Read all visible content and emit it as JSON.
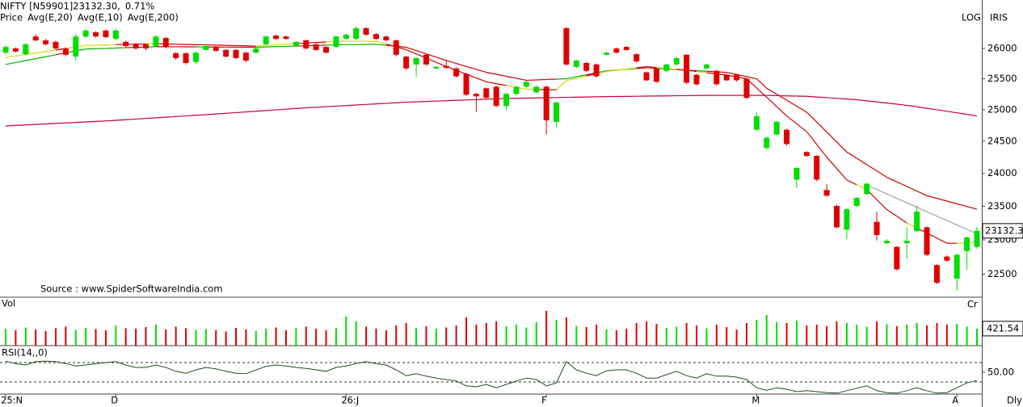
{
  "chart_data": [
    {
      "type": "candlestick",
      "title": "NIFTY [N59901]23132.30,",
      "subtitle": "0.71%",
      "subtitle_color": "#00a000",
      "scale_label": "LOG",
      "theme_label": "IRIS",
      "source": "Source : www.SpiderSoftwareIndia.com",
      "period_label": "Dly",
      "price_label": "Price",
      "price_color": "#006400",
      "log_scale": true,
      "ylim": [
        22170,
        26820
      ],
      "yticks": [
        22500,
        23000,
        23500,
        24000,
        24500,
        25000,
        25500,
        26000
      ],
      "up_color": "#00dd00",
      "down_color": "#e00000",
      "categories": [
        "25:N",
        null,
        null,
        null,
        null,
        null,
        null,
        null,
        null,
        null,
        null,
        "D",
        null,
        null,
        null,
        null,
        null,
        null,
        null,
        null,
        null,
        null,
        null,
        null,
        null,
        null,
        null,
        null,
        null,
        null,
        null,
        null,
        null,
        null,
        "26:J",
        null,
        null,
        null,
        null,
        null,
        null,
        null,
        null,
        null,
        null,
        null,
        null,
        null,
        null,
        null,
        null,
        null,
        null,
        null,
        "F",
        null,
        null,
        null,
        null,
        null,
        null,
        null,
        null,
        null,
        null,
        null,
        null,
        null,
        null,
        null,
        null,
        null,
        null,
        null,
        null,
        "M",
        null,
        null,
        null,
        null,
        null,
        null,
        null,
        null,
        null,
        null,
        null,
        null,
        null,
        null,
        null,
        null,
        null,
        null,
        null,
        "A",
        null,
        null
      ],
      "open": [
        25930,
        26000,
        25905,
        26200,
        26135,
        26110,
        26000,
        25865,
        26200,
        26270,
        26300,
        26160,
        26110,
        26070,
        26070,
        26040,
        26175,
        25920,
        25920,
        25775,
        25975,
        26025,
        25975,
        25975,
        25930,
        25930,
        26070,
        26215,
        26200,
        26040,
        26135,
        26070,
        26025,
        26025,
        26160,
        26160,
        26340,
        26240,
        26200,
        26135,
        25865,
        25735,
        25895,
        25670,
        25710,
        25670,
        25580,
        25255,
        25345,
        25370,
        25060,
        25255,
        25370,
        25280,
        25370,
        24805,
        26340,
        25695,
        25760,
        25735,
        25895,
        26000,
        26025,
        25905,
        25605,
        25670,
        25630,
        25735,
        25895,
        25565,
        25670,
        25630,
        25565,
        25565,
        25500,
        24680,
        24395,
        24605,
        24680,
        23905,
        24330,
        24270,
        23745,
        23505,
        23150,
        23505,
        23685,
        23265,
        22950,
        22895,
        22950,
        23130,
        23185,
        22630,
        22755,
        22435,
        22835,
        22895
      ],
      "high": [
        26050,
        26020,
        26090,
        26240,
        26160,
        26130,
        26020,
        26240,
        26320,
        26290,
        26320,
        26330,
        26130,
        26090,
        26080,
        26220,
        26190,
        25940,
        25935,
        25950,
        26060,
        26040,
        25990,
        25990,
        25950,
        26015,
        26215,
        26230,
        26215,
        26130,
        26150,
        26090,
        26040,
        26215,
        26245,
        26360,
        26360,
        26260,
        26215,
        26150,
        25880,
        25860,
        25910,
        25710,
        25800,
        25690,
        25600,
        25270,
        25360,
        25385,
        25270,
        25385,
        25470,
        25390,
        25390,
        25130,
        26360,
        25820,
        25780,
        25750,
        25945,
        26015,
        26040,
        25920,
        25620,
        25685,
        25750,
        25860,
        25910,
        25580,
        25750,
        25645,
        25580,
        25580,
        25515,
        24960,
        24570,
        24820,
        24700,
        24100,
        24345,
        24285,
        23840,
        23520,
        23470,
        23640,
        23860,
        23420,
        23010,
        22910,
        23180,
        23510,
        23200,
        22645,
        22770,
        22800,
        23050,
        23190
      ],
      "low": [
        25900,
        25930,
        25880,
        26120,
        26050,
        25980,
        25870,
        25800,
        26180,
        26180,
        26170,
        26140,
        26020,
        25980,
        25970,
        26020,
        26000,
        25810,
        25730,
        25740,
        25960,
        25945,
        25850,
        25820,
        25770,
        25915,
        26050,
        26145,
        26150,
        26025,
        25985,
        25960,
        25915,
        26010,
        26150,
        26140,
        26215,
        26145,
        26120,
        25870,
        25640,
        25525,
        25715,
        25655,
        25665,
        25525,
        25220,
        24960,
        25170,
        25040,
        24985,
        25240,
        25355,
        25265,
        24605,
        24720,
        25715,
        25670,
        25610,
        25520,
        25880,
        25915,
        25960,
        25765,
        25460,
        25435,
        25610,
        25720,
        25415,
        25390,
        25655,
        25390,
        25460,
        25455,
        25170,
        24665,
        24360,
        24590,
        24430,
        23780,
        24255,
        23880,
        23640,
        23170,
        23010,
        23490,
        23670,
        22990,
        22935,
        22550,
        22720,
        23110,
        22760,
        22355,
        22680,
        22265,
        22560,
        22870
      ],
      "close": [
        26025,
        25950,
        26070,
        26135,
        26070,
        26000,
        25895,
        26200,
        26300,
        26200,
        26190,
        26300,
        26040,
        26000,
        26000,
        26200,
        26025,
        25840,
        25760,
        25930,
        26040,
        25960,
        25865,
        25840,
        25800,
        26000,
        26200,
        26160,
        26160,
        26110,
        26000,
        25975,
        25930,
        26200,
        26230,
        26340,
        26230,
        26160,
        26135,
        25895,
        25670,
        25840,
        25735,
        25695,
        25680,
        25540,
        25240,
        25215,
        25190,
        25060,
        25255,
        25370,
        25450,
        25370,
        24830,
        25115,
        25735,
        25800,
        25630,
        25540,
        25930,
        25930,
        25975,
        25785,
        25475,
        25450,
        25735,
        25840,
        25435,
        25410,
        25735,
        25410,
        25475,
        25475,
        25190,
        24895,
        24555,
        24805,
        24455,
        24085,
        24270,
        23905,
        23660,
        23185,
        23455,
        23625,
        23840,
        23070,
        22985,
        22570,
        22985,
        23420,
        22780,
        22375,
        22695,
        22780,
        23035,
        23132.3
      ],
      "series": [
        {
          "name": "Avg(E,20)",
          "color": "#00b000",
          "down_color": "#d00000",
          "values": [
            25735,
            25767,
            25799,
            25831,
            25863,
            25895,
            25927,
            25959,
            25990,
            25996,
            26001,
            26007,
            26013,
            26018,
            26024,
            26030,
            26029,
            26028,
            26027,
            26026,
            26025,
            26024,
            26023,
            26022,
            26021,
            26020,
            26025,
            26030,
            26035,
            26040,
            26045,
            26050,
            26055,
            26060,
            26063,
            26065,
            26068,
            26070,
            26053,
            26037,
            26020,
            25965,
            25910,
            25855,
            25800,
            25751,
            25702,
            25654,
            25605,
            25573,
            25540,
            25508,
            25475,
            25481,
            25488,
            25494,
            25500,
            25533,
            25565,
            25598,
            25630,
            25643,
            25655,
            25668,
            25680,
            25670,
            25660,
            25650,
            25640,
            25631,
            25623,
            25614,
            25605,
            25570,
            25535,
            25500,
            25345,
            25249,
            25153,
            25056,
            24960,
            24803,
            24645,
            24488,
            24330,
            24233,
            24135,
            24038,
            23940,
            23870,
            23800,
            23730,
            23660,
            23619,
            23578,
            23537,
            23496,
            23455
          ]
        },
        {
          "name": "Avg(E,10)",
          "color": "#d8d800",
          "down_color": "#d00000",
          "values": [
            25850,
            25875,
            25900,
            25925,
            25950,
            25975,
            26000,
            26025,
            26050,
            26054,
            26059,
            26063,
            26067,
            26071,
            26076,
            26080,
            26076,
            26072,
            26068,
            26064,
            26060,
            26056,
            26052,
            26048,
            26044,
            26040,
            26050,
            26060,
            26070,
            26080,
            26090,
            26100,
            26110,
            26120,
            26120,
            26120,
            26120,
            26120,
            26073,
            26027,
            25980,
            25910,
            25840,
            25770,
            25700,
            25638,
            25575,
            25513,
            25450,
            25420,
            25390,
            25360,
            25330,
            25327,
            25323,
            25320,
            25470,
            25508,
            25545,
            25583,
            25620,
            25640,
            25660,
            25680,
            25700,
            25685,
            25670,
            25655,
            25640,
            25620,
            25600,
            25580,
            25560,
            25530,
            25500,
            25350,
            25200,
            25050,
            24900,
            24775,
            24650,
            24450,
            24250,
            24075,
            23900,
            23825,
            23750,
            23600,
            23450,
            23350,
            23250,
            23175,
            23100,
            23025,
            22950,
            22950,
            22950,
            22980
          ]
        },
        {
          "name": "Avg(E,200)",
          "color": "#c8003c",
          "down_color": "#c8003c",
          "values": [
            24740,
            24748,
            24756,
            24764,
            24772,
            24780,
            24788,
            24796,
            24804,
            24812,
            24820,
            24830,
            24840,
            24850,
            24860,
            24870,
            24880,
            24890,
            24900,
            24910,
            24920,
            24931,
            24942,
            24953,
            24964,
            24975,
            24986,
            24997,
            25008,
            25019,
            25030,
            25039,
            25048,
            25057,
            25066,
            25075,
            25084,
            25093,
            25102,
            25111,
            25120,
            25126,
            25132,
            25138,
            25144,
            25150,
            25156,
            25162,
            25168,
            25174,
            25180,
            25183,
            25186,
            25189,
            25192,
            25195,
            25198,
            25201,
            25204,
            25207,
            25210,
            25212,
            25214,
            25216,
            25218,
            25220,
            25222,
            25224,
            25226,
            25228,
            25230,
            25230,
            25230,
            25230,
            25230,
            25230,
            25230,
            25226,
            25222,
            25218,
            25215,
            25204,
            25193,
            25182,
            25171,
            25160,
            25142,
            25124,
            25106,
            25088,
            25070,
            25046,
            25022,
            24998,
            24974,
            24950,
            24925,
            24900
          ]
        }
      ]
    },
    {
      "type": "bar",
      "title": "Vol",
      "unit_label": "Cr",
      "ylim": [
        0,
        1200
      ],
      "values": [
        420,
        380,
        450,
        400,
        360,
        430,
        470,
        390,
        440,
        410,
        380,
        500,
        430,
        420,
        460,
        520,
        400,
        470,
        430,
        390,
        410,
        380,
        350,
        440,
        400,
        360,
        420,
        450,
        380,
        430,
        470,
        420,
        380,
        430,
        720,
        600,
        470,
        420,
        380,
        500,
        560,
        430,
        480,
        420,
        450,
        500,
        700,
        520,
        560,
        600,
        480,
        520,
        450,
        580,
        860,
        640,
        700,
        480,
        460,
        520,
        400,
        380,
        420,
        560,
        600,
        540,
        440,
        470,
        560,
        500,
        430,
        520,
        460,
        400,
        560,
        640,
        760,
        580,
        560,
        620,
        500,
        520,
        480,
        600,
        560,
        520,
        470,
        600,
        530,
        480,
        520,
        560,
        500,
        560,
        520,
        540,
        470,
        421.54
      ]
    },
    {
      "type": "line",
      "title": "RSI(14,,0)",
      "color": "#1f4f1f",
      "ylim": [
        5,
        105
      ],
      "yticks": [
        {
          "value": 50,
          "label": "50.00"
        }
      ],
      "levels": [
        30,
        70
      ],
      "values": [
        73,
        68,
        65,
        72,
        73,
        72,
        68,
        63,
        65,
        68,
        70,
        72,
        65,
        60,
        60,
        65,
        60,
        52,
        48,
        55,
        60,
        57,
        52,
        48,
        47,
        55,
        62,
        65,
        63,
        60,
        58,
        55,
        52,
        60,
        63,
        68,
        72,
        68,
        65,
        55,
        43,
        47,
        42,
        38,
        35,
        32,
        22,
        20,
        25,
        18,
        25,
        32,
        38,
        35,
        22,
        28,
        72,
        55,
        48,
        43,
        53,
        55,
        55,
        48,
        38,
        38,
        45,
        52,
        43,
        38,
        47,
        42,
        42,
        40,
        35,
        18,
        13,
        18,
        15,
        10,
        12,
        10,
        8,
        7,
        12,
        17,
        22,
        12,
        8,
        7,
        12,
        18,
        12,
        7,
        8,
        18,
        28,
        33
      ]
    }
  ]
}
